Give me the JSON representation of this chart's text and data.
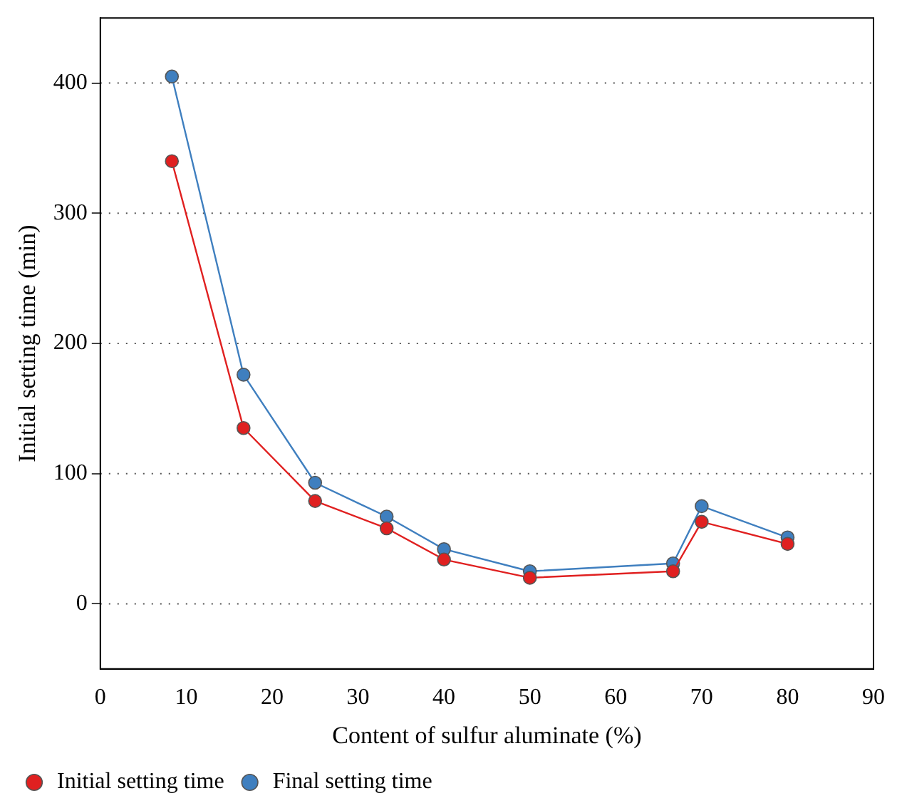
{
  "chart_data": {
    "type": "line",
    "xlabel": "Content of sulfur aluminate (%)",
    "ylabel": "Initial setting time (min)",
    "x": [
      8.33,
      16.67,
      25,
      33.33,
      40,
      50,
      66.67,
      70,
      80
    ],
    "series": [
      {
        "name": "Initial setting time",
        "color": "#e02020",
        "values": [
          340,
          135,
          79,
          58,
          34,
          20,
          25,
          63,
          46
        ]
      },
      {
        "name": "Final setting time",
        "color": "#3f7fbf",
        "values": [
          405,
          176,
          93,
          67,
          42,
          25,
          31,
          75,
          51
        ]
      }
    ],
    "xlim": [
      0,
      90
    ],
    "xticks": [
      0,
      10,
      20,
      30,
      40,
      50,
      60,
      70,
      80,
      90
    ],
    "ylim": [
      -50,
      450
    ],
    "yticks": [
      0,
      100,
      200,
      300,
      400
    ],
    "grid": "y",
    "legend": "bottom left",
    "marker": "circle",
    "line_style": "solid"
  }
}
